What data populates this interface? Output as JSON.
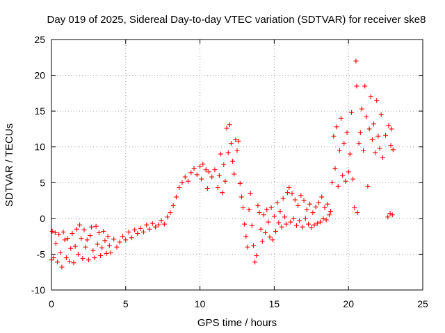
{
  "colors": {
    "series": "#ff0000",
    "grid": "#a0a0a0",
    "frame": "#000000"
  },
  "chart_data": {
    "type": "scatter",
    "marker": "plus",
    "title": "Day 019 of 2025, Sidereal Day-to-day VTEC variation (SDTVAR) for receiver ske8",
    "xlabel": "GPS time / hours",
    "ylabel": "SDTVAR / TECUs",
    "xlim": [
      0,
      25
    ],
    "ylim": [
      -10,
      25
    ],
    "xticks": [
      0,
      5,
      10,
      15,
      20,
      25
    ],
    "yticks": [
      -10,
      -5,
      0,
      5,
      10,
      15,
      20,
      25
    ],
    "grid": true,
    "legend": "none",
    "series": [
      {
        "name": "SDTVAR",
        "points": [
          [
            0.0,
            -5.8
          ],
          [
            0.05,
            -1.8
          ],
          [
            0.15,
            -5.5
          ],
          [
            0.25,
            -2.0
          ],
          [
            0.3,
            -3.5
          ],
          [
            0.4,
            -6.1
          ],
          [
            0.5,
            -2.2
          ],
          [
            0.6,
            -4.8
          ],
          [
            0.7,
            -6.8
          ],
          [
            0.8,
            -1.9
          ],
          [
            0.9,
            -3.0
          ],
          [
            1.0,
            -5.5
          ],
          [
            1.1,
            -2.8
          ],
          [
            1.2,
            -6.0
          ],
          [
            1.3,
            -4.2
          ],
          [
            1.4,
            -2.1
          ],
          [
            1.5,
            -6.2
          ],
          [
            1.6,
            -3.9
          ],
          [
            1.7,
            -1.5
          ],
          [
            1.8,
            -5.0
          ],
          [
            1.9,
            -0.9
          ],
          [
            2.0,
            -2.8
          ],
          [
            2.1,
            -5.6
          ],
          [
            2.2,
            -1.6
          ],
          [
            2.3,
            -4.0
          ],
          [
            2.4,
            -3.0
          ],
          [
            2.5,
            -5.8
          ],
          [
            2.6,
            -2.4
          ],
          [
            2.7,
            -1.2
          ],
          [
            2.8,
            -4.5
          ],
          [
            2.9,
            -5.5
          ],
          [
            3.0,
            -1.1
          ],
          [
            3.1,
            -3.6
          ],
          [
            3.2,
            -2.0
          ],
          [
            3.3,
            -5.2
          ],
          [
            3.4,
            -4.1
          ],
          [
            3.5,
            -1.8
          ],
          [
            3.6,
            -3.1
          ],
          [
            3.7,
            -4.9
          ],
          [
            3.8,
            -2.5
          ],
          [
            3.9,
            -3.8
          ],
          [
            4.0,
            -4.8
          ],
          [
            4.2,
            -2.9
          ],
          [
            4.4,
            -4.0
          ],
          [
            4.6,
            -3.3
          ],
          [
            4.8,
            -2.5
          ],
          [
            5.0,
            -3.0
          ],
          [
            5.2,
            -1.9
          ],
          [
            5.4,
            -2.7
          ],
          [
            5.6,
            -1.6
          ],
          [
            5.8,
            -2.1
          ],
          [
            6.0,
            -1.4
          ],
          [
            6.2,
            -1.9
          ],
          [
            6.4,
            -0.9
          ],
          [
            6.6,
            -1.5
          ],
          [
            6.8,
            -0.7
          ],
          [
            7.0,
            -1.2
          ],
          [
            7.2,
            -0.9
          ],
          [
            7.4,
            -0.3
          ],
          [
            7.6,
            -0.8
          ],
          [
            7.8,
            0.2
          ],
          [
            8.0,
            0.8
          ],
          [
            8.2,
            1.8
          ],
          [
            8.4,
            3.0
          ],
          [
            8.6,
            4.3
          ],
          [
            8.8,
            5.0
          ],
          [
            9.0,
            5.8
          ],
          [
            9.2,
            5.2
          ],
          [
            9.4,
            6.4
          ],
          [
            9.6,
            7.0
          ],
          [
            9.8,
            6.1
          ],
          [
            10.0,
            7.3
          ],
          [
            10.1,
            5.5
          ],
          [
            10.2,
            7.6
          ],
          [
            10.4,
            6.8
          ],
          [
            10.5,
            4.2
          ],
          [
            10.6,
            6.5
          ],
          [
            10.8,
            5.8
          ],
          [
            11.0,
            6.8
          ],
          [
            11.2,
            4.3
          ],
          [
            11.3,
            6.0
          ],
          [
            11.4,
            9.0
          ],
          [
            11.5,
            3.6
          ],
          [
            11.6,
            7.5
          ],
          [
            11.7,
            5.2
          ],
          [
            11.8,
            12.6
          ],
          [
            11.9,
            9.2
          ],
          [
            12.0,
            13.1
          ],
          [
            12.1,
            10.5
          ],
          [
            12.2,
            8.0
          ],
          [
            12.3,
            6.2
          ],
          [
            12.4,
            11.0
          ],
          [
            12.5,
            9.5
          ],
          [
            12.6,
            10.8
          ],
          [
            12.7,
            4.9
          ],
          [
            12.8,
            3.0
          ],
          [
            12.9,
            1.5
          ],
          [
            13.0,
            -0.8
          ],
          [
            13.1,
            -2.5
          ],
          [
            13.2,
            -4.0
          ],
          [
            13.3,
            1.2
          ],
          [
            13.4,
            3.5
          ],
          [
            13.5,
            -1.0
          ],
          [
            13.6,
            -3.8
          ],
          [
            13.7,
            -6.1
          ],
          [
            13.8,
            -5.2
          ],
          [
            13.9,
            1.8
          ],
          [
            14.0,
            0.8
          ],
          [
            14.1,
            -1.5
          ],
          [
            14.2,
            -3.2
          ],
          [
            14.3,
            0.5
          ],
          [
            14.4,
            -2.0
          ],
          [
            14.5,
            1.2
          ],
          [
            14.6,
            -0.5
          ],
          [
            14.7,
            -2.6
          ],
          [
            14.8,
            1.5
          ],
          [
            14.9,
            -3.0
          ],
          [
            15.0,
            0.3
          ],
          [
            15.1,
            -1.8
          ],
          [
            15.2,
            2.2
          ],
          [
            15.3,
            -0.6
          ],
          [
            15.4,
            1.0
          ],
          [
            15.5,
            -1.2
          ],
          [
            15.6,
            2.8
          ],
          [
            15.7,
            0.2
          ],
          [
            15.8,
            -0.8
          ],
          [
            15.9,
            3.6
          ],
          [
            16.0,
            4.3
          ],
          [
            16.1,
            -0.5
          ],
          [
            16.2,
            3.5
          ],
          [
            16.3,
            0.0
          ],
          [
            16.4,
            2.6
          ],
          [
            16.5,
            -1.0
          ],
          [
            16.6,
            1.8
          ],
          [
            16.7,
            -0.3
          ],
          [
            16.8,
            3.2
          ],
          [
            16.9,
            -1.2
          ],
          [
            17.0,
            2.5
          ],
          [
            17.1,
            0.0
          ],
          [
            17.2,
            1.2
          ],
          [
            17.3,
            -0.8
          ],
          [
            17.4,
            2.0
          ],
          [
            17.5,
            -1.3
          ],
          [
            17.6,
            0.8
          ],
          [
            17.7,
            -0.9
          ],
          [
            17.8,
            1.6
          ],
          [
            17.9,
            -0.7
          ],
          [
            18.0,
            2.2
          ],
          [
            18.1,
            -0.5
          ],
          [
            18.2,
            3.0
          ],
          [
            18.3,
            0.0
          ],
          [
            18.4,
            1.5
          ],
          [
            18.5,
            -0.2
          ],
          [
            18.6,
            2.0
          ],
          [
            18.7,
            0.5
          ],
          [
            18.8,
            1.0
          ],
          [
            18.9,
            5.0
          ],
          [
            19.0,
            11.5
          ],
          [
            19.1,
            7.0
          ],
          [
            19.2,
            12.8
          ],
          [
            19.3,
            4.5
          ],
          [
            19.4,
            9.5
          ],
          [
            19.5,
            14.0
          ],
          [
            19.6,
            6.0
          ],
          [
            19.7,
            10.5
          ],
          [
            19.8,
            5.2
          ],
          [
            19.9,
            12.0
          ],
          [
            20.0,
            6.5
          ],
          [
            20.1,
            9.0
          ],
          [
            20.2,
            14.8
          ],
          [
            20.3,
            5.5
          ],
          [
            20.4,
            1.5
          ],
          [
            20.5,
            22.0
          ],
          [
            20.55,
            18.5
          ],
          [
            20.6,
            0.8
          ],
          [
            20.7,
            10.5
          ],
          [
            20.8,
            12.0
          ],
          [
            20.9,
            15.3
          ],
          [
            21.0,
            9.5
          ],
          [
            21.1,
            18.5
          ],
          [
            21.2,
            14.2
          ],
          [
            21.3,
            4.5
          ],
          [
            21.4,
            12.5
          ],
          [
            21.5,
            17.0
          ],
          [
            21.6,
            11.0
          ],
          [
            21.7,
            13.2
          ],
          [
            21.8,
            9.2
          ],
          [
            21.9,
            16.5
          ],
          [
            22.0,
            11.5
          ],
          [
            22.1,
            9.8
          ],
          [
            22.2,
            14.5
          ],
          [
            22.3,
            8.5
          ],
          [
            22.5,
            11.6
          ],
          [
            22.65,
            0.2
          ],
          [
            22.7,
            13.0
          ],
          [
            22.8,
            0.7
          ],
          [
            22.85,
            10.2
          ],
          [
            22.9,
            12.5
          ],
          [
            22.95,
            0.5
          ],
          [
            23.0,
            9.6
          ]
        ]
      }
    ]
  }
}
